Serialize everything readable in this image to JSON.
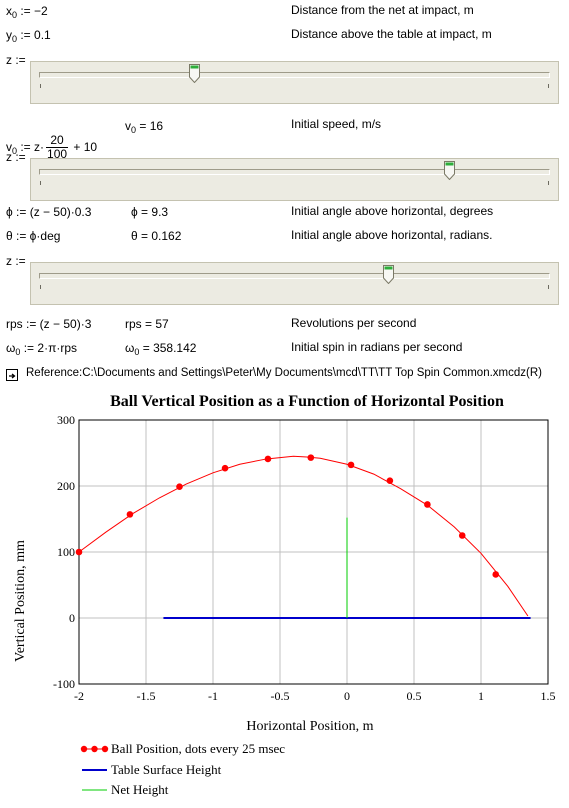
{
  "params": {
    "x0_def": "x",
    "x0_sub": "0",
    "x0_rhs": " := −2",
    "x0_desc": "Distance from the net at impact, m",
    "y0_def": "y",
    "y0_sub": "0",
    "y0_rhs": " := 0.1",
    "y0_desc": "Distance above the table at impact, m",
    "z_label_1": "z :=",
    "v0_lhs": "v",
    "v0_sub": "0",
    "v0_mid": " := z·",
    "v0_num": "20",
    "v0_den": "100",
    "v0_tail": " + 10",
    "v0_val_lhs": "v",
    "v0_val_sub": "0",
    "v0_val_rhs": " = 16",
    "v0_desc": "Initial speed, m/s",
    "z_label_2": "z :=",
    "phi_def": "ϕ := (z − 50)·0.3",
    "phi_val": "ϕ = 9.3",
    "phi_desc": "Initial angle above horizontal, degrees",
    "theta_def": "θ := ϕ·deg",
    "theta_val": "θ = 0.162",
    "theta_desc": "Initial angle above horizontal, radians.",
    "z_label_3": "z :=",
    "rps_def": "rps := (z − 50)·3",
    "rps_val": "rps = 57",
    "rps_desc": "Revolutions per second",
    "w0_lhs": "ω",
    "w0_sub": "0",
    "w0_rhs": " := 2·π·rps",
    "w0_val_lhs": "ω",
    "w0_val_sub": "0",
    "w0_val_rhs": " = 358.142",
    "w0_desc": "Initial spin in radians per second"
  },
  "sliders": [
    {
      "name": "z-slider-1",
      "value_fraction": 0.305
    },
    {
      "name": "z-slider-2",
      "value_fraction": 0.805
    },
    {
      "name": "z-slider-3",
      "value_fraction": 0.685
    }
  ],
  "reference": {
    "icon": "reference-arrow-icon",
    "text": "Reference:C:\\Documents and Settings\\Peter\\My Documents\\mcd\\TT\\TT Top Spin Common.xmcdz(R)"
  },
  "chart_data": {
    "type": "line",
    "title": "Ball Vertical Position as a Function of Horizontal Position",
    "xlabel": "Horizontal Position, m",
    "ylabel": "Vertical Position, mm",
    "xlim": [
      -2,
      1.5
    ],
    "ylim": [
      -100,
      300
    ],
    "xticks": [
      -2,
      -1.5,
      -1,
      -0.5,
      0,
      0.5,
      1,
      1.5
    ],
    "xtick_labels": [
      "-2",
      "-1.5",
      "-1",
      "-0.5",
      "0",
      "0.5",
      "1",
      "1.5"
    ],
    "yticks": [
      -100,
      0,
      100,
      200,
      300
    ],
    "ytick_labels": [
      "-100",
      "0",
      "100",
      "200",
      "300"
    ],
    "grid": true,
    "legend_position": "bottom-left",
    "series": [
      {
        "name": "Ball Position, dots every 25 msec",
        "color": "#ff0000",
        "style": "line-with-dots",
        "curve": [
          [
            -2,
            100
          ],
          [
            -1.8,
            130
          ],
          [
            -1.6,
            158
          ],
          [
            -1.4,
            182
          ],
          [
            -1.2,
            203
          ],
          [
            -1.0,
            220
          ],
          [
            -0.8,
            233
          ],
          [
            -0.6,
            241
          ],
          [
            -0.4,
            245
          ],
          [
            -0.3,
            244
          ],
          [
            -0.2,
            242
          ],
          [
            0.0,
            233
          ],
          [
            0.2,
            218
          ],
          [
            0.4,
            196
          ],
          [
            0.6,
            171
          ],
          [
            0.8,
            138
          ],
          [
            1.0,
            98
          ],
          [
            1.2,
            48
          ],
          [
            1.35,
            3
          ]
        ],
        "dots": [
          [
            -2.0,
            100
          ],
          [
            -1.62,
            157
          ],
          [
            -1.25,
            199
          ],
          [
            -0.91,
            227
          ],
          [
            -0.59,
            241
          ],
          [
            -0.27,
            243
          ],
          [
            0.03,
            232
          ],
          [
            0.32,
            208
          ],
          [
            0.6,
            172
          ],
          [
            0.86,
            125
          ],
          [
            1.11,
            66
          ]
        ]
      },
      {
        "name": "Table Surface Height",
        "color": "#0000cc",
        "style": "line",
        "points": [
          [
            -1.37,
            0
          ],
          [
            1.37,
            0
          ]
        ]
      },
      {
        "name": "Net Height",
        "color": "#00cc00",
        "style": "line",
        "points": [
          [
            0,
            0
          ],
          [
            0,
            152
          ]
        ]
      }
    ]
  }
}
